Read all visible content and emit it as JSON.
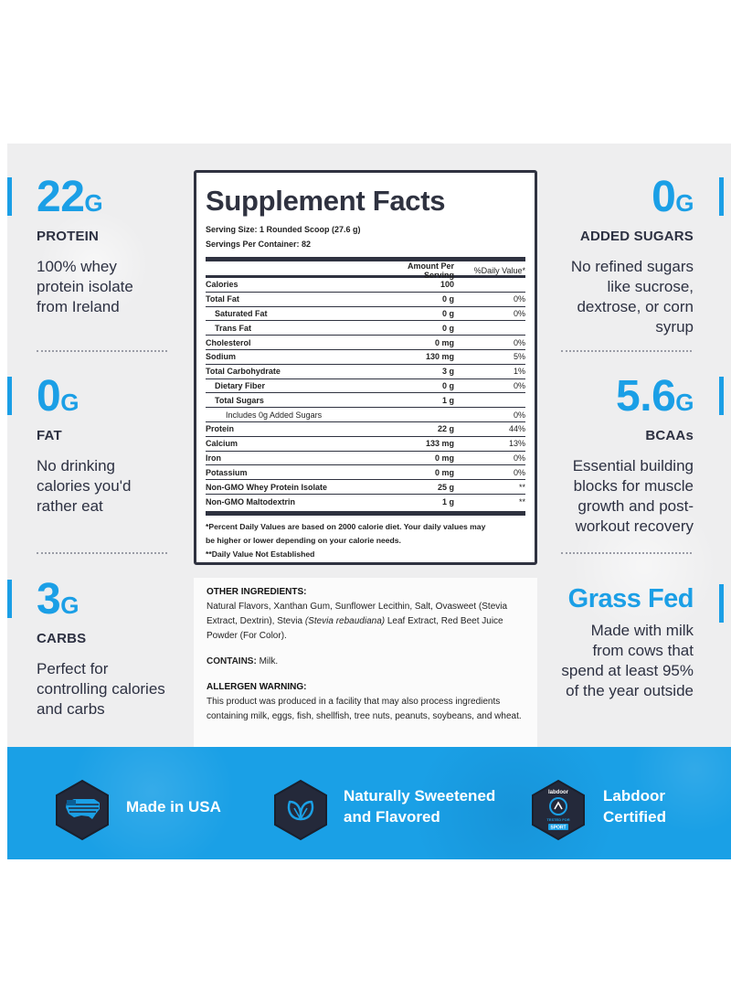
{
  "stats_left": [
    {
      "value": "22",
      "unit": "G",
      "label": "PROTEIN",
      "desc": [
        "100% whey",
        "protein isolate",
        "from Ireland"
      ]
    },
    {
      "value": "0",
      "unit": "G",
      "label": "FAT",
      "desc": [
        "No drinking",
        "calories you'd",
        "rather eat"
      ]
    },
    {
      "value": "3",
      "unit": "G",
      "label": "CARBS",
      "desc": [
        "Perfect for",
        "controlling calories",
        "and carbs"
      ]
    }
  ],
  "stats_right": [
    {
      "value": "0",
      "unit": "G",
      "label": "ADDED SUGARS",
      "desc": [
        "No refined sugars",
        "like sucrose,",
        "dextrose, or corn",
        "syrup"
      ]
    },
    {
      "value": "5.6",
      "unit": "G",
      "label": "BCAAs",
      "desc": [
        "Essential building",
        "blocks for muscle",
        "growth and post-",
        "workout recovery"
      ]
    },
    {
      "value": "Grass Fed",
      "unit": "",
      "label": "",
      "desc": [
        "Made with milk",
        "from cows that",
        "spend at least 95%",
        "of the year outside"
      ]
    }
  ],
  "facts": {
    "title": "Supplement Facts",
    "serving_size": "Serving Size: 1 Rounded Scoop (27.6 g)",
    "servings_per_container": "Servings Per Container: 82",
    "col_amount": "Amount Per Serving",
    "col_dv": "%Daily Value*",
    "rows": [
      {
        "name": "Calories",
        "amount": "100",
        "dv": ""
      },
      {
        "name": "Total Fat",
        "amount": "0 g",
        "dv": "0%"
      },
      {
        "name": "Saturated Fat",
        "amount": "0 g",
        "dv": "0%"
      },
      {
        "name": "Trans Fat",
        "amount": "0 g",
        "dv": ""
      },
      {
        "name": "Cholesterol",
        "amount": "0 mg",
        "dv": "0%"
      },
      {
        "name": "Sodium",
        "amount": "130 mg",
        "dv": "5%"
      },
      {
        "name": "Total Carbohydrate",
        "amount": "3 g",
        "dv": "1%"
      },
      {
        "name": "Dietary Fiber",
        "amount": "0 g",
        "dv": "0%"
      },
      {
        "name": "Total Sugars",
        "amount": "1 g",
        "dv": ""
      },
      {
        "name": "Includes 0g Added Sugars",
        "amount": "",
        "dv": "0%"
      },
      {
        "name": "Protein",
        "amount": "22 g",
        "dv": "44%"
      },
      {
        "name": "Calcium",
        "amount": "133 mg",
        "dv": "13%"
      },
      {
        "name": "Iron",
        "amount": "0 mg",
        "dv": "0%"
      },
      {
        "name": "Potassium",
        "amount": "0 mg",
        "dv": "0%"
      },
      {
        "name": "Non-GMO Whey Protein Isolate",
        "amount": "25 g",
        "dv": "**"
      },
      {
        "name": "Non-GMO Maltodextrin",
        "amount": "1 g",
        "dv": "**"
      }
    ],
    "footnote_1": "*Percent Daily Values are based on 2000 calorie diet. Your daily values may",
    "footnote_2": "be higher or lower depending on your calorie needs.",
    "footnote_3": "**Daily Value Not Established"
  },
  "other_ingredients": {
    "heading": "OTHER INGREDIENTS:",
    "text_a": "Natural Flavors, Xanthan Gum, Sunflower Lecithin, Salt, Ovasweet (Stevia Extract, Dextrin), Stevia ",
    "text_italic": "(Stevia rebaudiana)",
    "text_b": " Leaf Extract, Red Beet Juice Powder (For Color)."
  },
  "contains": {
    "heading": "CONTAINS:",
    "text": " Milk."
  },
  "allergen": {
    "heading": "ALLERGEN WARNING:",
    "text": "This product was produced in a facility that may also process ingredients containing milk, eggs, fish, shellfish, tree nuts, peanuts, soybeans, and wheat."
  },
  "badges": [
    {
      "icon": "usa-map-icon",
      "label_1": "Made in USA",
      "label_2": ""
    },
    {
      "icon": "leaf-icon",
      "label_1": "Naturally Sweetened",
      "label_2": "and Flavored"
    },
    {
      "icon": "labdoor-seal-icon",
      "label_1": "Labdoor",
      "label_2": "Certified",
      "seal_top": "labdoor",
      "seal_mid": "TESTED FOR",
      "seal_bottom": "SPORT"
    }
  ],
  "colors": {
    "accent": "#1b9fe6",
    "dark": "#2d3142",
    "band": "#1aa0e6",
    "badge": "#24293a"
  }
}
